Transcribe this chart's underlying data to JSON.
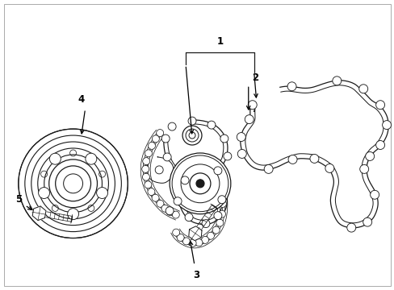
{
  "background_color": "#ffffff",
  "line_color": "#1a1a1a",
  "line_width": 0.9,
  "fig_width": 4.89,
  "fig_height": 3.6,
  "dpi": 100,
  "border_color": "#aaaaaa",
  "label_fontsize": 8.5,
  "label_color": "#000000",
  "arrow_color": "#000000"
}
